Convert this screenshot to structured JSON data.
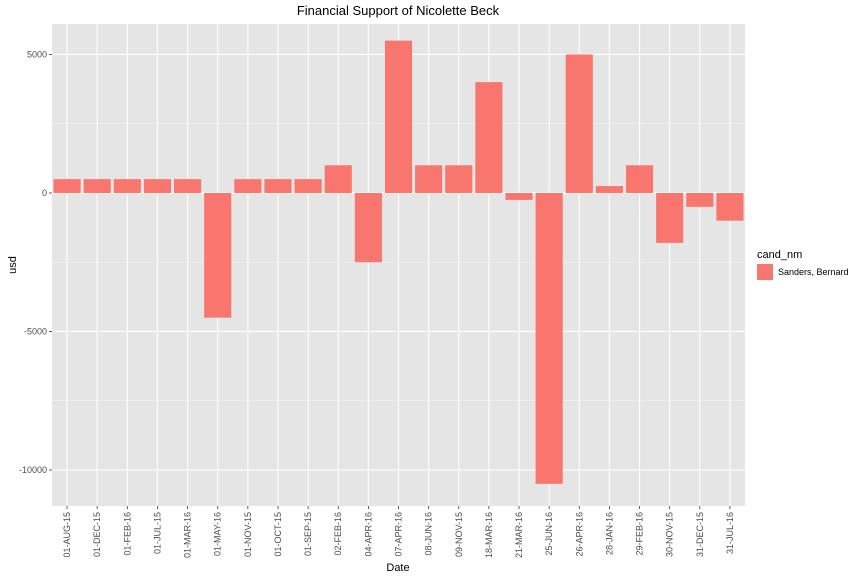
{
  "chart_data": {
    "type": "bar",
    "title": "Financial Support of Nicolette Beck",
    "xlabel": "Date",
    "ylabel": "usd",
    "categories": [
      "01-AUG-15",
      "01-DEC-15",
      "01-FEB-16",
      "01-JUL-15",
      "01-MAR-16",
      "01-MAY-16",
      "01-NOV-15",
      "01-OCT-15",
      "01-SEP-15",
      "02-FEB-16",
      "04-APR-16",
      "07-APR-16",
      "08-JUN-16",
      "09-NOV-15",
      "18-MAR-16",
      "21-MAR-16",
      "25-JUN-16",
      "26-APR-16",
      "28-JAN-16",
      "29-FEB-16",
      "30-NOV-15",
      "31-DEC-15",
      "31-JUL-16"
    ],
    "series": [
      {
        "name": "Sanders, Bernard",
        "color": "#f8766d",
        "values": [
          500,
          500,
          500,
          500,
          500,
          -4500,
          500,
          500,
          500,
          1000,
          -2500,
          5500,
          1000,
          1000,
          4000,
          -250,
          -10500,
          5000,
          250,
          1000,
          -1800,
          -500,
          -1000
        ]
      }
    ],
    "yticks": [
      -10000,
      -5000,
      0,
      5000
    ],
    "ytick_labels": [
      "-10000",
      "-5000",
      "0",
      "5000"
    ],
    "ylim": [
      -11300,
      6100
    ],
    "grid": true,
    "legend": {
      "title": "cand_nm",
      "position": "right"
    },
    "colors": {
      "panel_background": "#e5e5e5",
      "gridline": "#ffffff",
      "bar": "#f8766d"
    }
  }
}
